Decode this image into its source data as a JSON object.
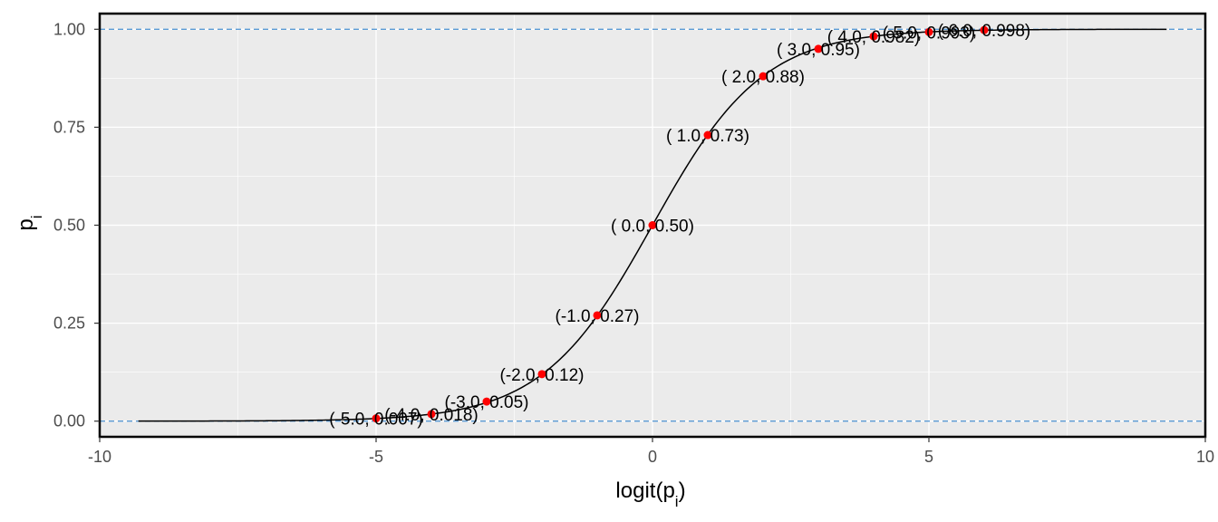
{
  "chart_data": {
    "type": "line",
    "title": "",
    "xlabel": "logit(p",
    "xlabel_sub": "i",
    "xlabel_close": ")",
    "ylabel": "p",
    "ylabel_sub": "i",
    "xlim": [
      -10,
      10
    ],
    "ylim": [
      -0.04,
      1.04
    ],
    "x_ticks": [
      -10,
      -5,
      0,
      5,
      10
    ],
    "x_tick_labels": [
      "-10",
      "-5",
      "0",
      "5",
      "10"
    ],
    "y_ticks": [
      0,
      0.25,
      0.5,
      0.75,
      1.0
    ],
    "y_tick_labels": [
      "0.00",
      "0.25",
      "0.50",
      "0.75",
      "1.00"
    ],
    "grid": true,
    "curve": {
      "function": "logistic",
      "x_range": [
        -9.3,
        9.3
      ],
      "color": "#000000"
    },
    "reference_lines": [
      {
        "y": 0,
        "color": "#5b9bd5",
        "style": "dashed"
      },
      {
        "y": 1,
        "color": "#5b9bd5",
        "style": "dashed"
      }
    ],
    "points": [
      {
        "x": -5,
        "y": 0.007,
        "label": "(-5.0, 0.007)"
      },
      {
        "x": -4,
        "y": 0.018,
        "label": "(-4.0, 0.018)"
      },
      {
        "x": -3,
        "y": 0.05,
        "label": "(-3.0, 0.05)"
      },
      {
        "x": -2,
        "y": 0.12,
        "label": "(-2.0, 0.12)"
      },
      {
        "x": -1,
        "y": 0.27,
        "label": "(-1.0, 0.27)"
      },
      {
        "x": 0,
        "y": 0.5,
        "label": "( 0.0, 0.50)"
      },
      {
        "x": 1,
        "y": 0.73,
        "label": "( 1.0, 0.73)"
      },
      {
        "x": 2,
        "y": 0.88,
        "label": "( 2.0, 0.88)"
      },
      {
        "x": 3,
        "y": 0.95,
        "label": "( 3.0, 0.95)"
      },
      {
        "x": 4,
        "y": 0.982,
        "label": "( 4.0, 0.982)"
      },
      {
        "x": 5,
        "y": 0.993,
        "label": "( 5.0, 0.993)"
      },
      {
        "x": 6,
        "y": 0.998,
        "label": "( 6.0, 0.998)"
      }
    ],
    "point_color": "#ff0000",
    "panel_background": "#ebebeb",
    "grid_color": "#ffffff"
  }
}
